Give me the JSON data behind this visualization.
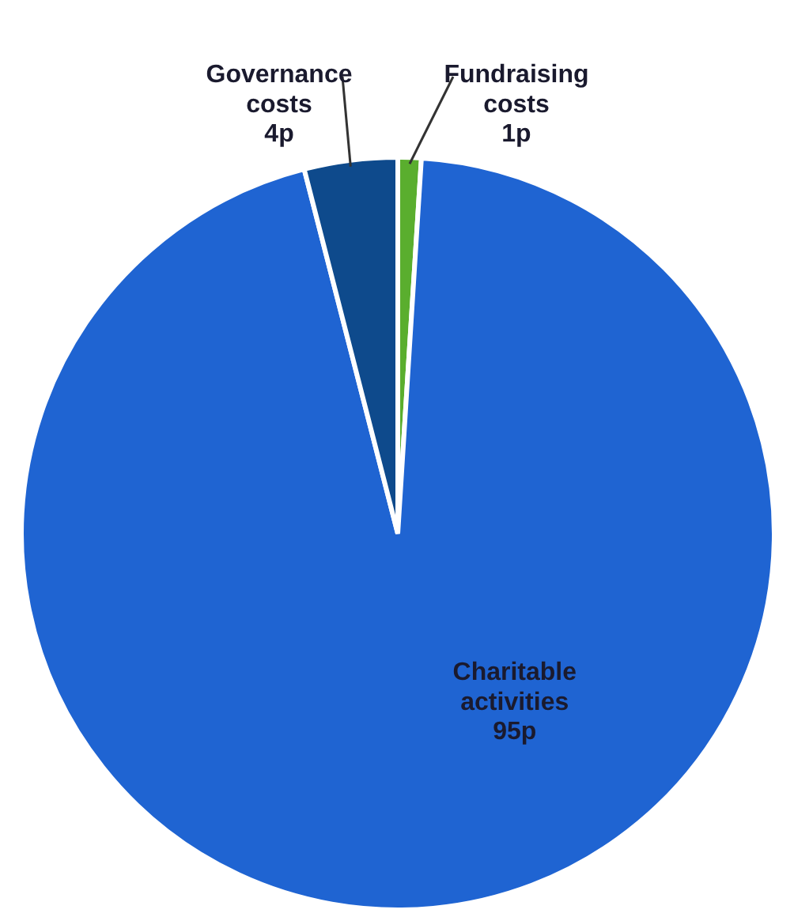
{
  "chart_data": {
    "type": "pie",
    "categories": [
      "Fundraising costs",
      "Charitable activities",
      "Governance costs"
    ],
    "values": [
      1,
      95,
      4
    ],
    "colors": [
      "#5aae2e",
      "#1f64d2",
      "#0e4a8c"
    ],
    "value_labels": [
      "1p",
      "95p",
      "4p"
    ],
    "legend": false
  }
}
